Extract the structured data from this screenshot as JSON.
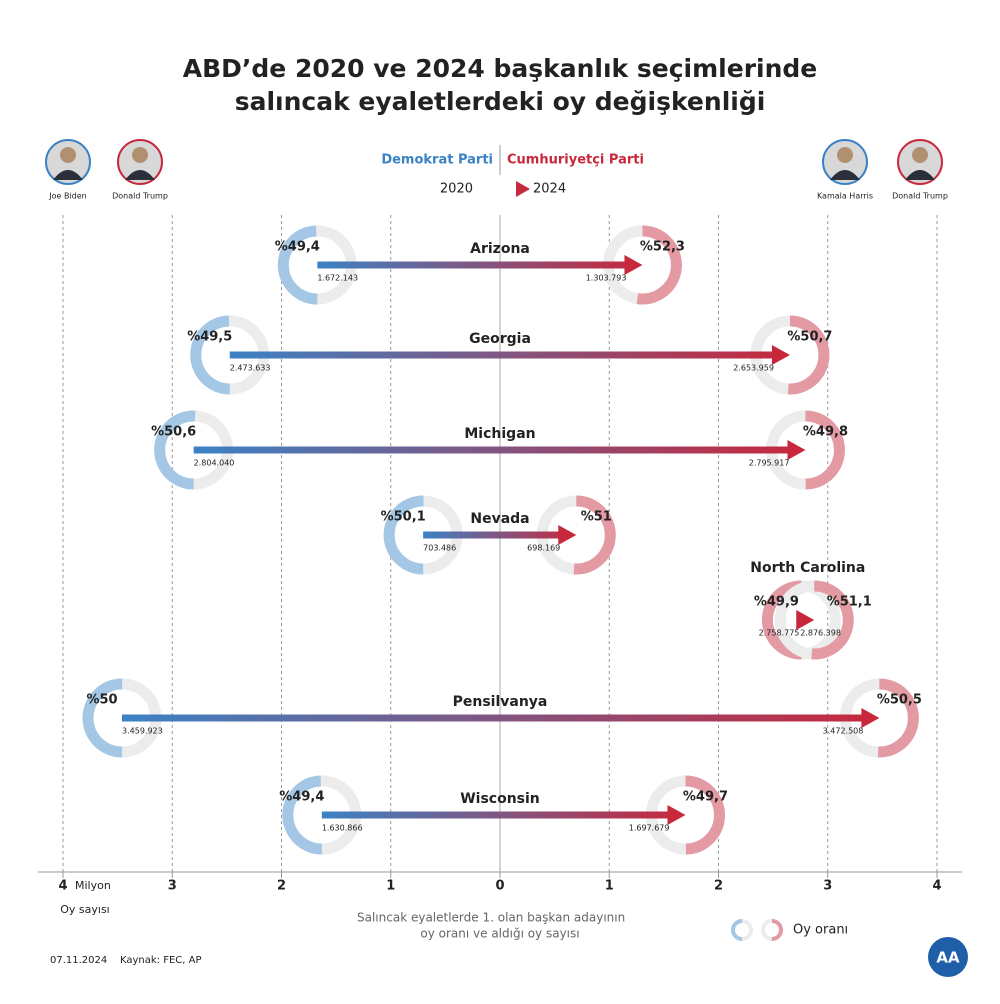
{
  "title_lines": [
    "ABD’de 2020 ve 2024 başkanlık seçimlerinde",
    "salıncak eyaletlerdeki oy değişkenliği"
  ],
  "legend": {
    "from": "2020",
    "to": "2024"
  },
  "candidates_2020": [
    "Joe Biden",
    "Donald Trump"
  ],
  "candidates_2024": [
    "Kamala Harris",
    "Donald Trump"
  ],
  "chart_data": {
    "type": "arrow",
    "parties": [
      {
        "name": "Demokrat Parti",
        "color": "#3b82c4",
        "ring": "#a3c7e4",
        "side": "left"
      },
      {
        "name": "Cumhuriyetçi Parti",
        "color": "#c8283c",
        "ring": "#e39aa3",
        "side": "right"
      }
    ],
    "xlim": [
      -4000000,
      4000000
    ],
    "xticks": [
      {
        "value": -4000000,
        "label": "4"
      },
      {
        "value": -3000000,
        "label": "3"
      },
      {
        "value": -2000000,
        "label": "2"
      },
      {
        "value": -1000000,
        "label": "1"
      },
      0,
      {
        "value": 1000000,
        "label": "1"
      },
      {
        "value": 2000000,
        "label": "2"
      },
      {
        "value": 3000000,
        "label": "3"
      },
      {
        "value": 4000000,
        "label": "4"
      }
    ],
    "x_unit": "Milyon",
    "xlabel": "Oy sayısı",
    "states": [
      {
        "name": "Arizona",
        "from": {
          "party": "Demokrat Parti",
          "votes": 1672143,
          "vote_label": "1.672.143",
          "pct": 49.4,
          "pct_label": "%49,4"
        },
        "to": {
          "party": "Cumhuriyetçi Parti",
          "votes": 1303793,
          "vote_label": "1.303.793",
          "pct": 52.3,
          "pct_label": "%52,3"
        }
      },
      {
        "name": "Georgia",
        "from": {
          "party": "Demokrat Parti",
          "votes": 2473633,
          "vote_label": "2.473.633",
          "pct": 49.5,
          "pct_label": "%49,5"
        },
        "to": {
          "party": "Cumhuriyetçi Parti",
          "votes": 2653959,
          "vote_label": "2.653.959",
          "pct": 50.7,
          "pct_label": "%50,7"
        }
      },
      {
        "name": "Michigan",
        "from": {
          "party": "Demokrat Parti",
          "votes": 2804040,
          "vote_label": "2.804.040",
          "pct": 50.6,
          "pct_label": "%50,6"
        },
        "to": {
          "party": "Cumhuriyetçi Parti",
          "votes": 2795917,
          "vote_label": "2.795.917",
          "pct": 49.8,
          "pct_label": "%49,8"
        }
      },
      {
        "name": "Nevada",
        "from": {
          "party": "Demokrat Parti",
          "votes": 703486,
          "vote_label": "703.486",
          "pct": 50.1,
          "pct_label": "%50,1"
        },
        "to": {
          "party": "Cumhuriyetçi Parti",
          "votes": 698169,
          "vote_label": "698.169",
          "pct": 51,
          "pct_label": "%51"
        }
      },
      {
        "name": "North Carolina",
        "from": {
          "party": "Cumhuriyetçi Parti",
          "votes": 2758775,
          "vote_label": "2.758.775",
          "pct": 49.9,
          "pct_label": "%49,9"
        },
        "to": {
          "party": "Cumhuriyetçi Parti",
          "votes": 2876398,
          "vote_label": "2.876.398",
          "pct": 51.1,
          "pct_label": "%51,1"
        }
      },
      {
        "name": "Pensilvanya",
        "from": {
          "party": "Demokrat Parti",
          "votes": 3459923,
          "vote_label": "3.459.923",
          "pct": 50,
          "pct_label": "%50"
        },
        "to": {
          "party": "Cumhuriyetçi Parti",
          "votes": 3472508,
          "vote_label": "3.472.508",
          "pct": 50.5,
          "pct_label": "%50,5"
        }
      },
      {
        "name": "Wisconsin",
        "from": {
          "party": "Demokrat Parti",
          "votes": 1630866,
          "vote_label": "1.630.866",
          "pct": 49.4,
          "pct_label": "%49,4"
        },
        "to": {
          "party": "Cumhuriyetçi Parti",
          "votes": 1697679,
          "vote_label": "1.697.679",
          "pct": 49.7,
          "pct_label": "%49,7"
        }
      }
    ]
  },
  "note_lines": [
    "Salıncak eyaletlerde 1. olan başkan adayının",
    "oy oranı ve aldığı oy sayısı"
  ],
  "ring_legend": "Oy oranı",
  "footer": {
    "date": "07.11.2024",
    "source": "Kaynak: FEC, AP"
  },
  "logo": "AA"
}
